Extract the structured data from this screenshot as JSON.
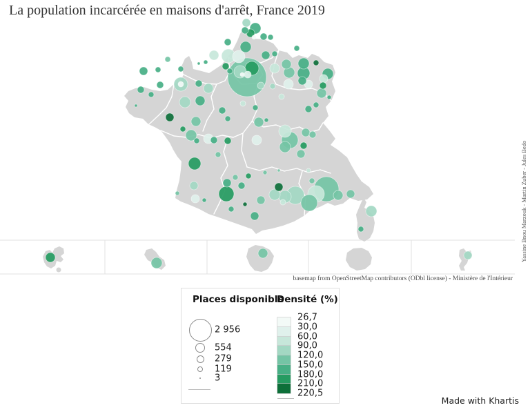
{
  "title": "La population incarcérée en maisons d'arrêt, France 2019",
  "credits_vertical": "Yassine Bnou Marzouk - Martin Zuber - Jules Bedo",
  "attribution": "basemap from OpenStreetMap contributors (ODbl license) - Ministère de l'Intérieur",
  "made_with": "Made with Khartis",
  "legend": {
    "size_title": "Places disponible",
    "size_items": [
      {
        "label": "2 956",
        "r": 16.5
      },
      {
        "label": "554",
        "r": 7
      },
      {
        "label": "279",
        "r": 5.5
      },
      {
        "label": "119",
        "r": 4
      },
      {
        "label": "3",
        "r": 1
      }
    ],
    "color_title": "Densité (%)",
    "color_stops": [
      "26,7",
      "30,0",
      "60,0",
      "90,0",
      "120,0",
      "150,0",
      "180,0",
      "210,0",
      "220,5"
    ],
    "palette": [
      "#f3faf7",
      "#e0f1ec",
      "#c7e7da",
      "#a3d8c3",
      "#74c4a5",
      "#47af85",
      "#259b61",
      "#0d6f39"
    ]
  },
  "map": {
    "land_color": "#d5d5d5",
    "border_color": "#ffffff",
    "circles": [
      [
        357,
        33,
        6,
        4
      ],
      [
        370,
        41,
        8,
        6
      ],
      [
        355,
        44,
        5,
        6
      ],
      [
        363,
        48,
        6,
        7
      ],
      [
        368,
        54,
        3,
        1
      ],
      [
        382,
        53,
        5,
        6
      ],
      [
        392,
        54,
        4,
        6
      ],
      [
        356,
        68,
        8,
        6
      ],
      [
        330,
        61,
        5,
        6
      ],
      [
        310,
        80,
        7,
        3
      ],
      [
        331,
        81,
        10,
        3
      ],
      [
        298,
        90,
        3,
        6
      ],
      [
        288,
        92,
        2,
        6
      ],
      [
        243,
        86,
        4,
        5
      ],
      [
        262,
        100,
        4,
        6
      ],
      [
        346,
        82,
        9,
        2
      ],
      [
        327,
        96,
        5,
        7
      ],
      [
        333,
        103,
        4,
        6
      ],
      [
        358,
        112,
        28,
        5
      ],
      [
        365,
        99,
        10,
        7
      ],
      [
        348,
        104,
        9,
        4
      ],
      [
        359,
        108,
        5,
        2
      ],
      [
        351,
        108,
        3,
        1
      ],
      [
        385,
        80,
        6,
        6
      ],
      [
        398,
        78,
        4,
        6
      ],
      [
        415,
        93,
        7,
        5
      ],
      [
        419,
        105,
        8,
        5
      ],
      [
        430,
        70,
        4,
        6
      ],
      [
        440,
        92,
        8,
        6
      ],
      [
        440,
        106,
        9,
        6
      ],
      [
        458,
        91,
        4,
        8
      ],
      [
        475,
        107,
        8,
        6
      ],
      [
        469,
        114,
        6,
        3
      ],
      [
        447,
        122,
        6,
        2
      ],
      [
        468,
        124,
        5,
        7
      ],
      [
        466,
        135,
        7,
        5
      ],
      [
        477,
        141,
        3,
        6
      ],
      [
        398,
        99,
        7,
        3
      ],
      [
        395,
        125,
        4,
        4
      ],
      [
        378,
        124,
        5,
        4
      ],
      [
        418,
        122,
        7,
        2
      ],
      [
        438,
        117,
        6,
        6
      ],
      [
        352,
        150,
        4,
        3
      ],
      [
        370,
        156,
        4,
        6
      ],
      [
        322,
        160,
        5,
        6
      ],
      [
        330,
        172,
        4,
        6
      ],
      [
        375,
        177,
        7,
        5
      ],
      [
        386,
        174,
        3,
        6
      ],
      [
        408,
        140,
        4,
        3
      ],
      [
        197,
        153,
        2,
        6
      ],
      [
        208,
        103,
        6,
        6
      ],
      [
        229,
        101,
        4,
        6
      ],
      [
        204,
        130,
        5,
        6
      ],
      [
        219,
        137,
        4,
        6
      ],
      [
        232,
        123,
        5,
        6
      ],
      [
        262,
        122,
        10,
        4
      ],
      [
        262,
        122,
        4,
        1
      ],
      [
        288,
        121,
        5,
        6
      ],
      [
        302,
        128,
        7,
        4
      ],
      [
        268,
        148,
        8,
        4
      ],
      [
        290,
        146,
        7,
        6
      ],
      [
        246,
        170,
        6,
        8
      ],
      [
        265,
        187,
        4,
        7
      ],
      [
        284,
        176,
        7,
        5
      ],
      [
        277,
        196,
        8,
        5
      ],
      [
        285,
        204,
        4,
        6
      ],
      [
        302,
        201,
        7,
        2
      ],
      [
        330,
        204,
        5,
        7
      ],
      [
        372,
        203,
        7,
        2
      ],
      [
        310,
        203,
        5,
        6
      ],
      [
        413,
        190,
        9,
        3
      ],
      [
        420,
        203,
        12,
        5
      ],
      [
        413,
        213,
        8,
        5
      ],
      [
        436,
        223,
        6,
        5
      ],
      [
        443,
        192,
        6,
        5
      ],
      [
        453,
        195,
        5,
        5
      ],
      [
        447,
        158,
        5,
        6
      ],
      [
        458,
        152,
        4,
        6
      ],
      [
        440,
        211,
        5,
        7
      ],
      [
        447,
        247,
        3,
        3
      ],
      [
        452,
        262,
        4,
        5
      ],
      [
        329,
        265,
        6,
        6
      ],
      [
        341,
        257,
        4,
        5
      ],
      [
        360,
        255,
        4,
        7
      ],
      [
        384,
        250,
        3,
        5
      ],
      [
        404,
        247,
        2,
        5
      ],
      [
        350,
        269,
        5,
        6
      ],
      [
        282,
        237,
        9,
        7
      ],
      [
        316,
        224,
        4,
        5
      ],
      [
        281,
        269,
        6,
        4
      ],
      [
        257,
        280,
        3,
        5
      ],
      [
        283,
        288,
        6,
        2
      ],
      [
        296,
        290,
        3,
        6
      ],
      [
        328,
        281,
        11,
        7
      ],
      [
        335,
        303,
        4,
        6
      ],
      [
        355,
        296,
        3,
        8
      ],
      [
        369,
        313,
        6,
        6
      ],
      [
        378,
        290,
        6,
        5
      ],
      [
        398,
        282,
        8,
        4
      ],
      [
        404,
        271,
        6,
        8
      ],
      [
        413,
        285,
        9,
        4
      ],
      [
        428,
        283,
        13,
        4
      ],
      [
        410,
        293,
        4,
        3
      ],
      [
        473,
        274,
        18,
        5
      ],
      [
        458,
        281,
        12,
        3
      ],
      [
        448,
        294,
        12,
        5
      ],
      [
        490,
        283,
        7,
        5
      ],
      [
        508,
        281,
        6,
        5
      ],
      [
        538,
        306,
        8,
        4
      ],
      [
        523,
        332,
        4,
        6
      ]
    ],
    "inset_circles": [
      [
        73,
        373,
        7,
        7
      ],
      [
        227,
        381,
        8,
        5
      ],
      [
        381,
        367,
        7,
        5
      ],
      [
        678,
        370,
        6,
        4
      ]
    ]
  },
  "chart_data": {
    "type": "proportional-symbol-map",
    "title": "La population incarcérée en maisons d'arrêt, France 2019",
    "size_variable": "Places disponible",
    "size_legend_values": [
      2956,
      554,
      279,
      119,
      3
    ],
    "color_variable": "Densité (%)",
    "color_scale_breaks": [
      26.7,
      30.0,
      60.0,
      90.0,
      120.0,
      150.0,
      180.0,
      210.0,
      220.5
    ],
    "palette": [
      "#f3faf7",
      "#e0f1ec",
      "#c7e7da",
      "#a3d8c3",
      "#74c4a5",
      "#47af85",
      "#259b61",
      "#0d6f39"
    ],
    "legend_position": "bottom-center",
    "insets": [
      "Guadeloupe",
      "Martinique",
      "Guyane",
      "La Réunion",
      "Mayotte"
    ]
  }
}
